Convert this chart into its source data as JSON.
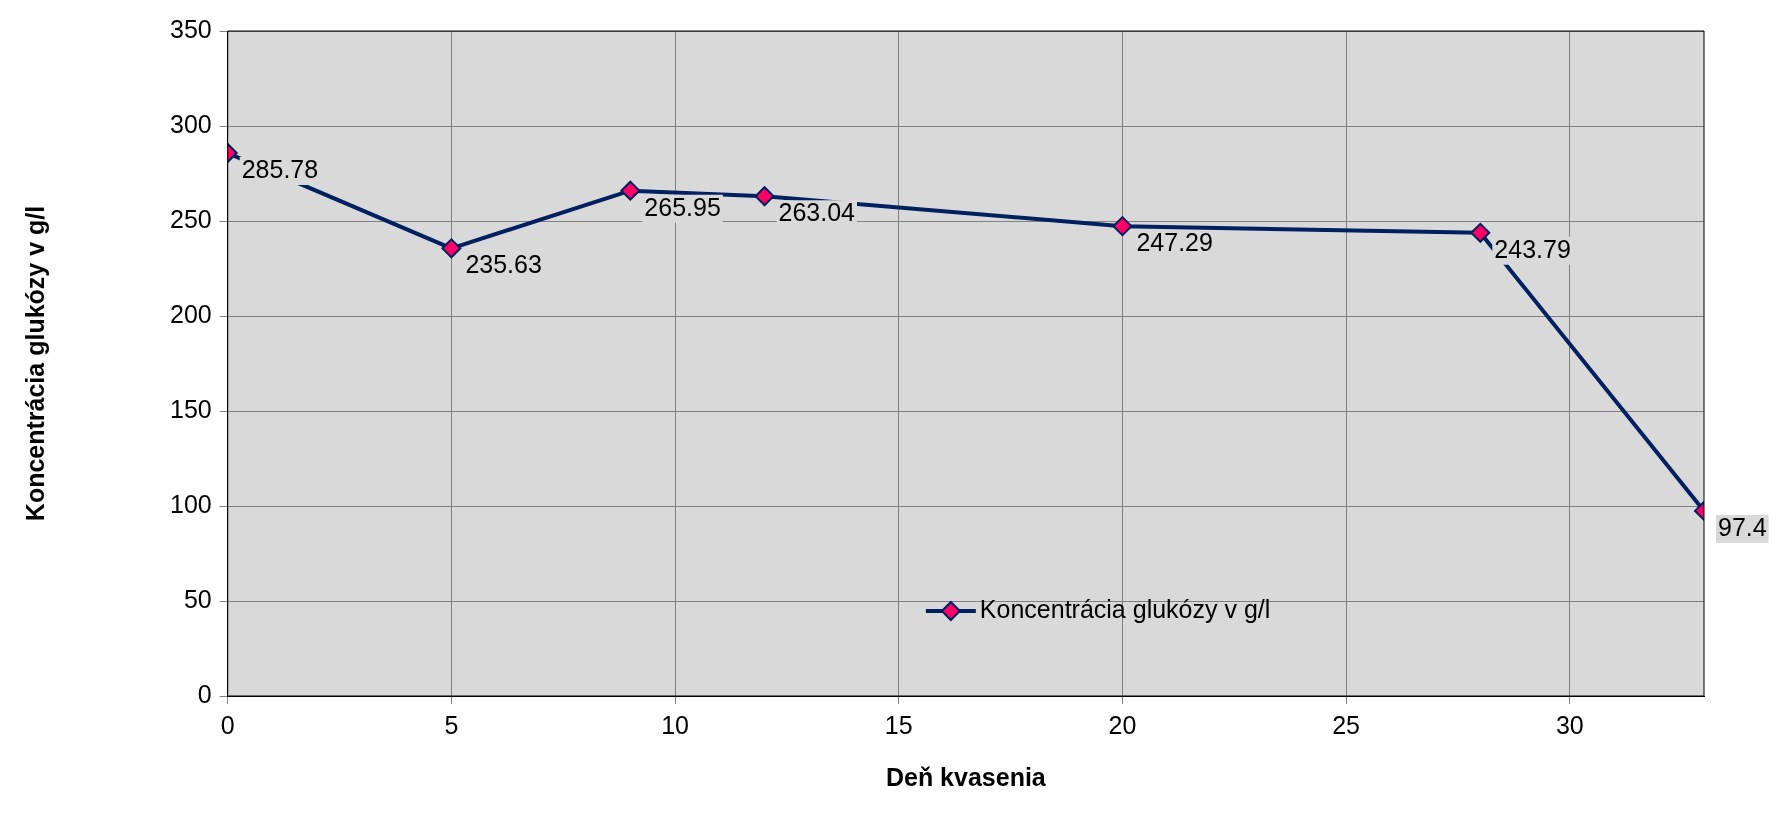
{
  "chart_data": {
    "type": "line",
    "xlabel": "Deň kvasenia",
    "ylabel": "Koncentrácia glukózy v g/l",
    "x": [
      0,
      5,
      9,
      12,
      20,
      28,
      33
    ],
    "series": [
      {
        "name": "Koncentrácia glukózy v g/l",
        "color": "#002060",
        "colors": [
          "#ff0066",
          "#ff0066",
          "#ff0066",
          "#ff0066",
          "#ff0066",
          "#ff0066",
          "#ff0066"
        ],
        "values": [
          285.78,
          235.63,
          265.95,
          263.04,
          247.29,
          243.79,
          97.4
        ]
      }
    ],
    "xlim": [
      0,
      33
    ],
    "xticks": [
      0,
      5,
      10,
      15,
      20,
      25,
      30
    ],
    "ylim": [
      0,
      350
    ],
    "yticks": [
      0,
      50,
      100,
      150,
      200,
      250,
      300,
      350
    ],
    "grid": true,
    "legend": "bottom",
    "marker": "diamond",
    "line_style": "solid",
    "data_labels": true
  }
}
